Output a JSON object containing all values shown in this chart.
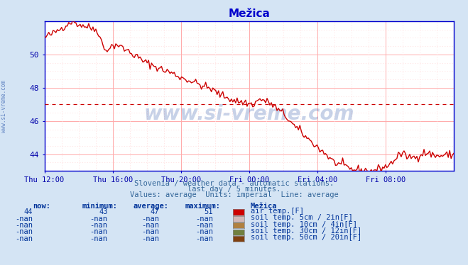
{
  "title": "Mežica",
  "title_color": "#0000cc",
  "bg_color": "#d4e4f4",
  "plot_bg_color": "#ffffff",
  "grid_color_major": "#ffaaaa",
  "grid_color_minor": "#ffdddd",
  "line_color": "#cc0000",
  "line_width": 1.0,
  "xlabel_color": "#0000aa",
  "ylabel_color": "#0000aa",
  "watermark": "www.si-vreme.com",
  "watermark_color": "#003399",
  "watermark_alpha": 0.22,
  "subtitle1": "Slovenia / weather data - automatic stations.",
  "subtitle2": "last day / 5 minutes.",
  "subtitle3": "Values: average  Units: imperial  Line: average",
  "subtitle_color": "#336699",
  "legend_title": "Mežica",
  "legend_color": "#003399",
  "legend_items": [
    {
      "label": "air temp.[F]",
      "color": "#cc0000"
    },
    {
      "label": "soil temp. 5cm / 2in[F]",
      "color": "#d4b8b8"
    },
    {
      "label": "soil temp. 10cm / 4in[F]",
      "color": "#b08040"
    },
    {
      "label": "soil temp. 30cm / 12in[F]",
      "color": "#708040"
    },
    {
      "label": "soil temp. 50cm / 20in[F]",
      "color": "#804010"
    }
  ],
  "stats": {
    "now": "44",
    "minimum": "43",
    "average": "47",
    "maximum": "51"
  },
  "stats_nan": "-nan",
  "xaxis_labels": [
    "Thu 12:00",
    "Thu 16:00",
    "Thu 20:00",
    "Fri 00:00",
    "Fri 04:00",
    "Fri 08:00"
  ],
  "xaxis_ticks": [
    0.0,
    0.1667,
    0.3333,
    0.5,
    0.6667,
    0.8333
  ],
  "ylim": [
    43.0,
    52.0
  ],
  "yticks": [
    44,
    46,
    48,
    50
  ],
  "dotted_line_y": 47.0,
  "dotted_line_color": "#cc0000",
  "spine_color": "#0000cc"
}
